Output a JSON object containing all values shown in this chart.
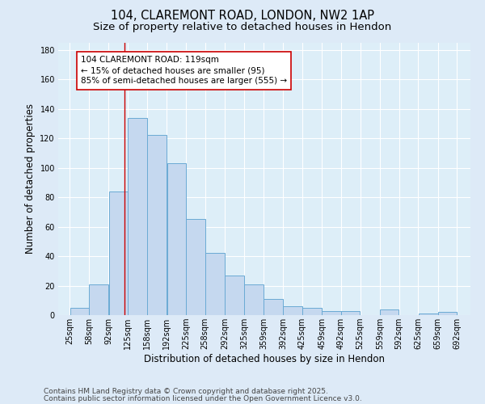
{
  "title1": "104, CLAREMONT ROAD, LONDON, NW2 1AP",
  "title2": "Size of property relative to detached houses in Hendon",
  "xlabel": "Distribution of detached houses by size in Hendon",
  "ylabel": "Number of detached properties",
  "bar_left_edges": [
    25,
    58,
    92,
    125,
    158,
    192,
    225,
    258,
    292,
    325,
    359,
    392,
    425,
    459,
    492,
    525,
    559,
    592,
    625,
    659
  ],
  "bar_widths": [
    33,
    34,
    33,
    33,
    34,
    33,
    33,
    34,
    33,
    34,
    33,
    33,
    34,
    33,
    33,
    34,
    33,
    33,
    34,
    33
  ],
  "bar_heights": [
    5,
    21,
    84,
    134,
    122,
    103,
    65,
    42,
    27,
    21,
    11,
    6,
    5,
    3,
    3,
    0,
    4,
    0,
    1,
    2
  ],
  "tick_labels": [
    "25sqm",
    "58sqm",
    "92sqm",
    "125sqm",
    "158sqm",
    "192sqm",
    "225sqm",
    "258sqm",
    "292sqm",
    "325sqm",
    "359sqm",
    "392sqm",
    "425sqm",
    "459sqm",
    "492sqm",
    "525sqm",
    "559sqm",
    "592sqm",
    "625sqm",
    "659sqm",
    "692sqm"
  ],
  "tick_positions": [
    25,
    58,
    92,
    125,
    158,
    192,
    225,
    258,
    292,
    325,
    359,
    392,
    425,
    459,
    492,
    525,
    559,
    592,
    625,
    659,
    692
  ],
  "bar_color": "#c5d8ef",
  "bar_edge_color": "#6aaad4",
  "red_line_x": 119,
  "annotation_line1": "104 CLAREMONT ROAD: 119sqm",
  "annotation_line2": "← 15% of detached houses are smaller (95)",
  "annotation_line3": "85% of semi-detached houses are larger (555) →",
  "annotation_box_color": "white",
  "annotation_box_edgecolor": "#cc0000",
  "ylim": [
    0,
    185
  ],
  "yticks": [
    0,
    20,
    40,
    60,
    80,
    100,
    120,
    140,
    160,
    180
  ],
  "xlim_left": 5,
  "xlim_right": 715,
  "footer1": "Contains HM Land Registry data © Crown copyright and database right 2025.",
  "footer2": "Contains public sector information licensed under the Open Government Licence v3.0.",
  "bg_color": "#ddeaf7",
  "plot_bg_color": "#ddeef8",
  "grid_color": "#ffffff",
  "title_fontsize": 10.5,
  "subtitle_fontsize": 9.5,
  "axis_label_fontsize": 8.5,
  "tick_fontsize": 7,
  "annotation_fontsize": 7.5,
  "footer_fontsize": 6.5
}
